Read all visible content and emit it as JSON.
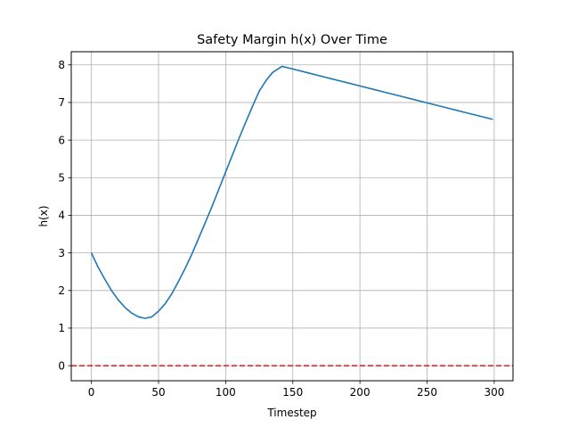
{
  "chart_data": {
    "type": "line",
    "title": "Safety Margin h(x) Over Time",
    "xlabel": "Timestep",
    "ylabel": "h(x)",
    "xlim": [
      -15,
      314
    ],
    "ylim": [
      -0.4,
      8.35
    ],
    "xticks": [
      0,
      50,
      100,
      150,
      200,
      250,
      300
    ],
    "yticks": [
      0,
      1,
      2,
      3,
      4,
      5,
      6,
      7,
      8
    ],
    "grid": true,
    "legend": "none",
    "series": [
      {
        "color": "#1f77b4",
        "style": "solid",
        "points": [
          [
            0,
            3.0
          ],
          [
            5,
            2.62
          ],
          [
            10,
            2.3
          ],
          [
            15,
            2.0
          ],
          [
            20,
            1.75
          ],
          [
            25,
            1.55
          ],
          [
            30,
            1.4
          ],
          [
            35,
            1.3
          ],
          [
            40,
            1.26
          ],
          [
            45,
            1.3
          ],
          [
            50,
            1.45
          ],
          [
            55,
            1.65
          ],
          [
            60,
            1.92
          ],
          [
            65,
            2.25
          ],
          [
            70,
            2.6
          ],
          [
            75,
            2.98
          ],
          [
            80,
            3.4
          ],
          [
            85,
            3.82
          ],
          [
            90,
            4.25
          ],
          [
            95,
            4.7
          ],
          [
            100,
            5.15
          ],
          [
            105,
            5.6
          ],
          [
            110,
            6.05
          ],
          [
            115,
            6.48
          ],
          [
            120,
            6.9
          ],
          [
            125,
            7.3
          ],
          [
            130,
            7.58
          ],
          [
            135,
            7.8
          ],
          [
            142,
            7.96
          ],
          [
            150,
            7.89
          ],
          [
            160,
            7.8
          ],
          [
            170,
            7.71
          ],
          [
            180,
            7.62
          ],
          [
            190,
            7.53
          ],
          [
            200,
            7.44
          ],
          [
            210,
            7.35
          ],
          [
            220,
            7.26
          ],
          [
            230,
            7.17
          ],
          [
            240,
            7.08
          ],
          [
            250,
            6.99
          ],
          [
            260,
            6.9
          ],
          [
            270,
            6.81
          ],
          [
            280,
            6.72
          ],
          [
            290,
            6.63
          ],
          [
            299,
            6.55
          ]
        ]
      },
      {
        "color": "#e41a1c",
        "style": "dashed",
        "points": [
          [
            -15,
            0
          ],
          [
            314,
            0
          ]
        ]
      }
    ]
  }
}
